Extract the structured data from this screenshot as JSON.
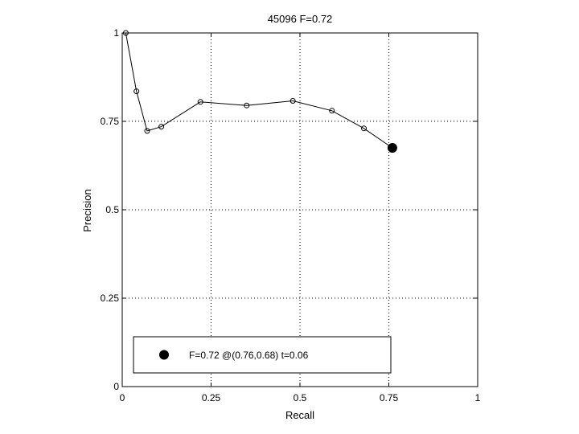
{
  "chart_data": {
    "type": "line",
    "title": "45096 F=0.72",
    "xlabel": "Recall",
    "ylabel": "Precision",
    "xlim": [
      0,
      1
    ],
    "ylim": [
      0,
      1
    ],
    "x_ticks": [
      0,
      0.25,
      0.5,
      0.75,
      1
    ],
    "y_ticks": [
      0,
      0.25,
      0.5,
      0.75,
      1
    ],
    "x_tick_labels": [
      "0",
      "0.25",
      "0.5",
      "0.75",
      "1"
    ],
    "y_tick_labels": [
      "0",
      "0.25",
      "0.5",
      "0.75",
      "1"
    ],
    "grid": true,
    "series": [
      {
        "marker": "open-circle",
        "color": "#000000",
        "x": [
          0.01,
          0.04,
          0.07,
          0.11,
          0.22,
          0.35,
          0.48,
          0.59,
          0.68,
          0.76
        ],
        "y": [
          1.0,
          0.835,
          0.723,
          0.735,
          0.805,
          0.795,
          0.808,
          0.78,
          0.73,
          0.675
        ]
      }
    ],
    "best_point": {
      "x": 0.76,
      "y": 0.675,
      "marker": "filled-circle"
    },
    "legend": {
      "position": "bottom",
      "entries": [
        "F=0.72 @(0.76,0.68) t=0.06"
      ]
    }
  }
}
